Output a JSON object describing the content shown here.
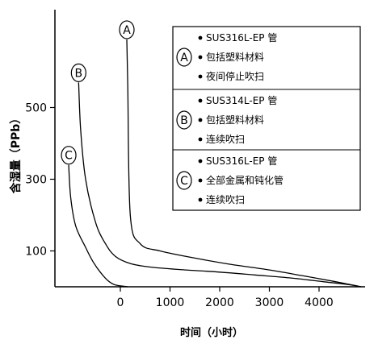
{
  "chart_data": {
    "type": "line",
    "title": "",
    "xlabel": "时间（小时）",
    "ylabel": "含湿量（PPb）",
    "x_ticks": [
      0,
      1000,
      2000,
      3000,
      4000
    ],
    "y_ticks": [
      100,
      300,
      500
    ],
    "xlim": [
      -1100,
      4900
    ],
    "ylim": [
      0,
      720
    ],
    "grid": false,
    "legend": "top-right",
    "series": [
      {
        "name": "A",
        "x": [
          130,
          150,
          200,
          400,
          800,
          1500,
          2200,
          3000,
          3700,
          4300,
          4850
        ],
        "y": [
          690,
          560,
          200,
          120,
          100,
          80,
          63,
          47,
          30,
          15,
          0
        ]
      },
      {
        "name": "B",
        "x": [
          -840,
          -800,
          -700,
          -500,
          -300,
          -100,
          200,
          600,
          1200,
          2000,
          2700,
          3400,
          4100,
          4600,
          4850
        ],
        "y": [
          570,
          440,
          300,
          180,
          120,
          85,
          65,
          55,
          48,
          41,
          33,
          25,
          14,
          6,
          0
        ]
      },
      {
        "name": "C",
        "x": [
          -1040,
          -1000,
          -900,
          -700,
          -550,
          -400,
          -250,
          -100,
          150
        ],
        "y": [
          340,
          250,
          170,
          110,
          70,
          40,
          17,
          5,
          0
        ]
      }
    ],
    "legend_entries": [
      {
        "marker": "A",
        "lines": [
          "SUS316L-EP 管",
          "包括塑料材料",
          "夜间停止吹扫"
        ]
      },
      {
        "marker": "B",
        "lines": [
          "SUS314L-EP 管",
          "包括塑料材料",
          "连续吹扫"
        ]
      },
      {
        "marker": "C",
        "lines": [
          "SUS316L-EP 管",
          "全部金属和钝化管",
          "连续吹扫"
        ]
      }
    ]
  }
}
